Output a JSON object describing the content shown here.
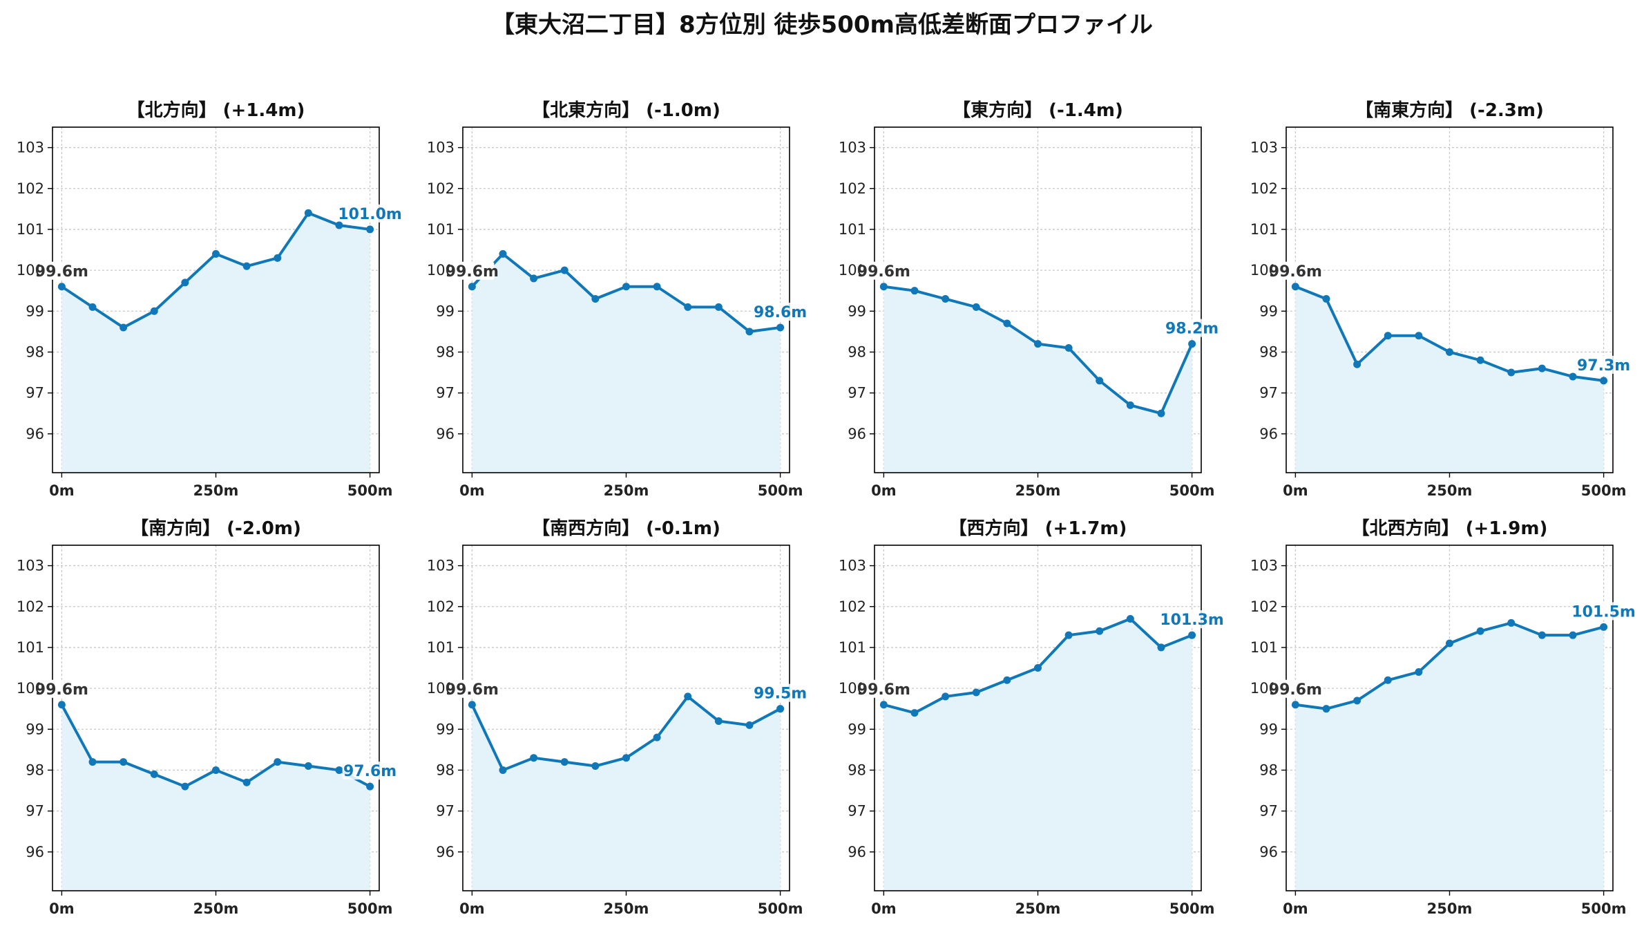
{
  "title": "【東大沼二丁目】8方位別 徒歩500m高低差断面プロファイル",
  "colors": {
    "line": "#1078b8",
    "fill": "#e4f3fa",
    "start_label": "#333333",
    "end_label": "#1078b8",
    "grid": "#c8c8c8"
  },
  "chart_data": [
    {
      "type": "line",
      "title": "【北方向】 (+1.4m)",
      "x": [
        0,
        50,
        100,
        150,
        200,
        250,
        300,
        350,
        400,
        450,
        500
      ],
      "values": [
        99.6,
        99.1,
        98.6,
        99.0,
        99.7,
        100.4,
        100.1,
        100.3,
        101.4,
        101.1,
        101.0
      ],
      "start_label": "99.6m",
      "end_label": "101.0m",
      "xticks": [
        0,
        250,
        500
      ],
      "xtick_labels": [
        "0m",
        "250m",
        "500m"
      ],
      "yticks": [
        96,
        97,
        98,
        99,
        100,
        101,
        102,
        103
      ],
      "ytick_labels": [
        "96",
        "97",
        "98",
        "99",
        "100",
        "101",
        "102",
        "103"
      ],
      "xlim": [
        -15,
        515
      ],
      "ylim": [
        95.05,
        103.5
      ],
      "grid": true
    },
    {
      "type": "line",
      "title": "【北東方向】 (-1.0m)",
      "x": [
        0,
        50,
        100,
        150,
        200,
        250,
        300,
        350,
        400,
        450,
        500
      ],
      "values": [
        99.6,
        100.4,
        99.8,
        100.0,
        99.3,
        99.6,
        99.6,
        99.1,
        99.1,
        98.5,
        98.6
      ],
      "start_label": "99.6m",
      "end_label": "98.6m",
      "xticks": [
        0,
        250,
        500
      ],
      "xtick_labels": [
        "0m",
        "250m",
        "500m"
      ],
      "yticks": [
        96,
        97,
        98,
        99,
        100,
        101,
        102,
        103
      ],
      "ytick_labels": [
        "96",
        "97",
        "98",
        "99",
        "100",
        "101",
        "102",
        "103"
      ],
      "xlim": [
        -15,
        515
      ],
      "ylim": [
        95.05,
        103.5
      ],
      "grid": true
    },
    {
      "type": "line",
      "title": "【東方向】 (-1.4m)",
      "x": [
        0,
        50,
        100,
        150,
        200,
        250,
        300,
        350,
        400,
        450,
        500
      ],
      "values": [
        99.6,
        99.5,
        99.3,
        99.1,
        98.7,
        98.2,
        98.1,
        97.3,
        96.7,
        96.5,
        98.2
      ],
      "start_label": "99.6m",
      "end_label": "98.2m",
      "xticks": [
        0,
        250,
        500
      ],
      "xtick_labels": [
        "0m",
        "250m",
        "500m"
      ],
      "yticks": [
        96,
        97,
        98,
        99,
        100,
        101,
        102,
        103
      ],
      "ytick_labels": [
        "96",
        "97",
        "98",
        "99",
        "100",
        "101",
        "102",
        "103"
      ],
      "xlim": [
        -15,
        515
      ],
      "ylim": [
        95.05,
        103.5
      ],
      "grid": true
    },
    {
      "type": "line",
      "title": "【南東方向】 (-2.3m)",
      "x": [
        0,
        50,
        100,
        150,
        200,
        250,
        300,
        350,
        400,
        450,
        500
      ],
      "values": [
        99.6,
        99.3,
        97.7,
        98.4,
        98.4,
        98.0,
        97.8,
        97.5,
        97.6,
        97.4,
        97.3
      ],
      "start_label": "99.6m",
      "end_label": "97.3m",
      "xticks": [
        0,
        250,
        500
      ],
      "xtick_labels": [
        "0m",
        "250m",
        "500m"
      ],
      "yticks": [
        96,
        97,
        98,
        99,
        100,
        101,
        102,
        103
      ],
      "ytick_labels": [
        "96",
        "97",
        "98",
        "99",
        "100",
        "101",
        "102",
        "103"
      ],
      "xlim": [
        -15,
        515
      ],
      "ylim": [
        95.05,
        103.5
      ],
      "grid": true
    },
    {
      "type": "line",
      "title": "【南方向】 (-2.0m)",
      "x": [
        0,
        50,
        100,
        150,
        200,
        250,
        300,
        350,
        400,
        450,
        500
      ],
      "values": [
        99.6,
        98.2,
        98.2,
        97.9,
        97.6,
        98.0,
        97.7,
        98.2,
        98.1,
        98.0,
        97.6
      ],
      "start_label": "99.6m",
      "end_label": "97.6m",
      "xticks": [
        0,
        250,
        500
      ],
      "xtick_labels": [
        "0m",
        "250m",
        "500m"
      ],
      "yticks": [
        96,
        97,
        98,
        99,
        100,
        101,
        102,
        103
      ],
      "ytick_labels": [
        "96",
        "97",
        "98",
        "99",
        "100",
        "101",
        "102",
        "103"
      ],
      "xlim": [
        -15,
        515
      ],
      "ylim": [
        95.05,
        103.5
      ],
      "grid": true
    },
    {
      "type": "line",
      "title": "【南西方向】 (-0.1m)",
      "x": [
        0,
        50,
        100,
        150,
        200,
        250,
        300,
        350,
        400,
        450,
        500
      ],
      "values": [
        99.6,
        98.0,
        98.3,
        98.2,
        98.1,
        98.3,
        98.8,
        99.8,
        99.2,
        99.1,
        99.5
      ],
      "start_label": "99.6m",
      "end_label": "99.5m",
      "xticks": [
        0,
        250,
        500
      ],
      "xtick_labels": [
        "0m",
        "250m",
        "500m"
      ],
      "yticks": [
        96,
        97,
        98,
        99,
        100,
        101,
        102,
        103
      ],
      "ytick_labels": [
        "96",
        "97",
        "98",
        "99",
        "100",
        "101",
        "102",
        "103"
      ],
      "xlim": [
        -15,
        515
      ],
      "ylim": [
        95.05,
        103.5
      ],
      "grid": true
    },
    {
      "type": "line",
      "title": "【西方向】 (+1.7m)",
      "x": [
        0,
        50,
        100,
        150,
        200,
        250,
        300,
        350,
        400,
        450,
        500
      ],
      "values": [
        99.6,
        99.4,
        99.8,
        99.9,
        100.2,
        100.5,
        101.3,
        101.4,
        101.7,
        101.0,
        101.3
      ],
      "start_label": "99.6m",
      "end_label": "101.3m",
      "xticks": [
        0,
        250,
        500
      ],
      "xtick_labels": [
        "0m",
        "250m",
        "500m"
      ],
      "yticks": [
        96,
        97,
        98,
        99,
        100,
        101,
        102,
        103
      ],
      "ytick_labels": [
        "96",
        "97",
        "98",
        "99",
        "100",
        "101",
        "102",
        "103"
      ],
      "xlim": [
        -15,
        515
      ],
      "ylim": [
        95.05,
        103.5
      ],
      "grid": true
    },
    {
      "type": "line",
      "title": "【北西方向】 (+1.9m)",
      "x": [
        0,
        50,
        100,
        150,
        200,
        250,
        300,
        350,
        400,
        450,
        500
      ],
      "values": [
        99.6,
        99.5,
        99.7,
        100.2,
        100.4,
        101.1,
        101.4,
        101.6,
        101.3,
        101.3,
        101.5
      ],
      "start_label": "99.6m",
      "end_label": "101.5m",
      "xticks": [
        0,
        250,
        500
      ],
      "xtick_labels": [
        "0m",
        "250m",
        "500m"
      ],
      "yticks": [
        96,
        97,
        98,
        99,
        100,
        101,
        102,
        103
      ],
      "ytick_labels": [
        "96",
        "97",
        "98",
        "99",
        "100",
        "101",
        "102",
        "103"
      ],
      "xlim": [
        -15,
        515
      ],
      "ylim": [
        95.05,
        103.5
      ],
      "grid": true
    }
  ]
}
